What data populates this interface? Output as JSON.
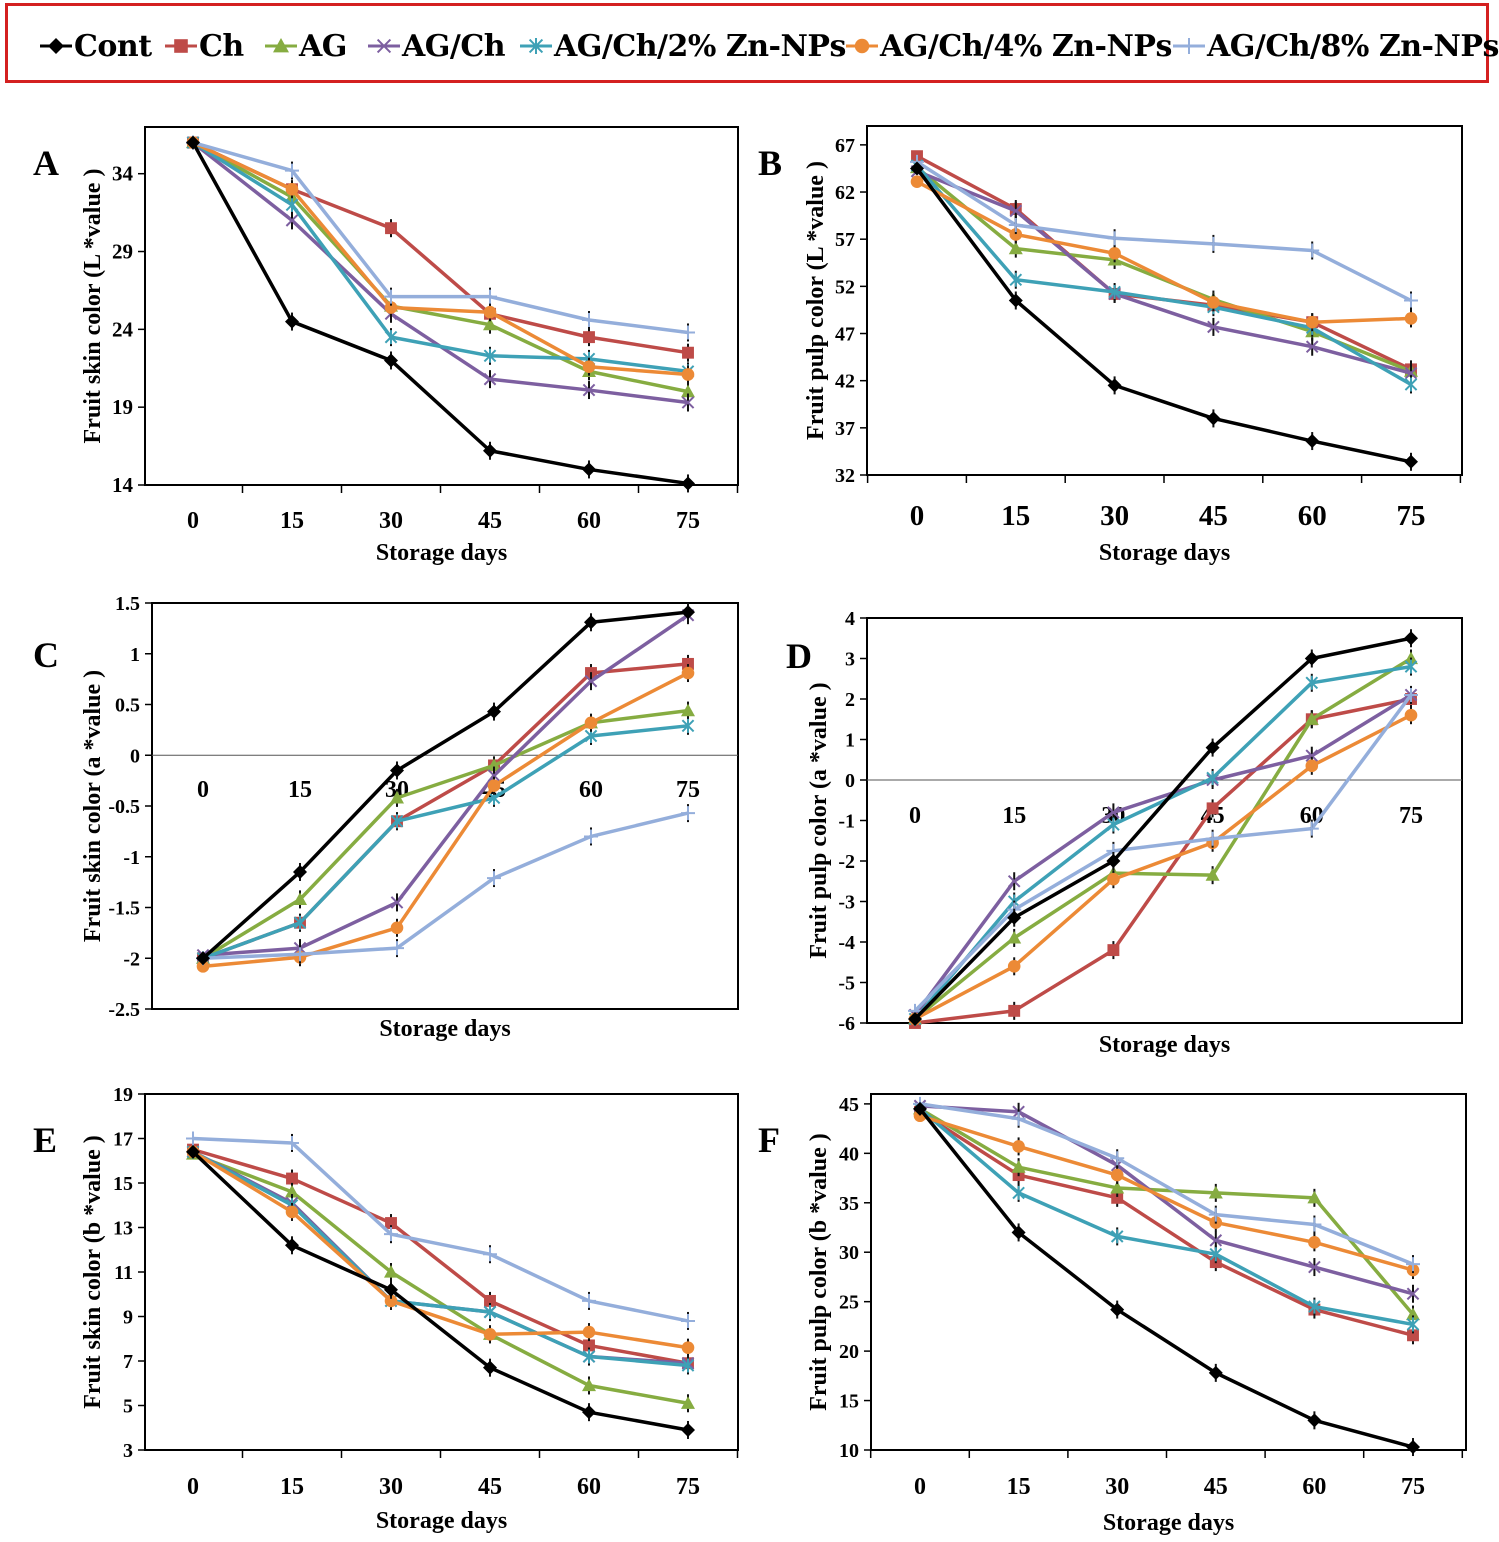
{
  "legend": [
    {
      "name": "Cont",
      "color": "#000000",
      "marker": "diamond"
    },
    {
      "name": "Ch",
      "color": "#be4b48",
      "marker": "square"
    },
    {
      "name": "AG",
      "color": "#86ac41",
      "marker": "triangle"
    },
    {
      "name": "AG/Ch",
      "color": "#7d5fa0",
      "marker": "x"
    },
    {
      "name": "AG/Ch/2% Zn-NPs",
      "color": "#3ea1b6",
      "marker": "star"
    },
    {
      "name": "AG/Ch/4% Zn-NPs",
      "color": "#ec8a36",
      "marker": "circle"
    },
    {
      "name": "AG/Ch/8% Zn-NPs",
      "color": "#94aedb",
      "marker": "plus"
    }
  ],
  "chart_data": [
    {
      "panel": "A",
      "type": "line",
      "ylabel": "Fruit skin  color (L *value )",
      "xlabel": "Storage days",
      "x": [
        0,
        15,
        30,
        45,
        60,
        75
      ],
      "xticks": [
        "0",
        "15",
        "30",
        "45",
        "60",
        "75"
      ],
      "ylim": [
        14,
        37
      ],
      "yticks": [
        "14",
        "19",
        "24",
        "29",
        "34"
      ],
      "series": [
        {
          "name": "Cont",
          "values": [
            36,
            24.5,
            22,
            16.2,
            15,
            14.1
          ]
        },
        {
          "name": "Ch",
          "values": [
            36,
            33,
            30.5,
            25,
            23.5,
            22.5
          ]
        },
        {
          "name": "AG",
          "values": [
            36,
            32.5,
            25.5,
            24.3,
            21.3,
            20
          ]
        },
        {
          "name": "AG/Ch",
          "values": [
            36,
            31,
            25,
            20.8,
            20.1,
            19.3
          ]
        },
        {
          "name": "AG/Ch/2% Zn-NPs",
          "values": [
            36,
            32,
            23.5,
            22.3,
            22.1,
            21.3
          ]
        },
        {
          "name": "AG/Ch/4% Zn-NPs",
          "values": [
            36,
            33,
            25.4,
            25.1,
            21.6,
            21.1
          ]
        },
        {
          "name": "AG/Ch/8% Zn-NPs",
          "values": [
            36,
            34.2,
            26.1,
            26.1,
            24.6,
            23.8
          ]
        }
      ]
    },
    {
      "panel": "B",
      "type": "line",
      "ylabel": "Fruit pulp color (L *value )",
      "xlabel": "Storage days",
      "x": [
        0,
        15,
        30,
        45,
        60,
        75
      ],
      "xticks": [
        "0",
        "15",
        "30",
        "45",
        "60",
        "75"
      ],
      "ylim": [
        32,
        69
      ],
      "yticks": [
        "32",
        "37",
        "42",
        "47",
        "52",
        "57",
        "62",
        "67"
      ],
      "series": [
        {
          "name": "Cont",
          "values": [
            64.5,
            50.5,
            41.5,
            38,
            35.6,
            33.4
          ]
        },
        {
          "name": "Ch",
          "values": [
            65.8,
            60.2,
            51.2,
            50,
            48.2,
            43.2
          ]
        },
        {
          "name": "AG",
          "values": [
            64.6,
            56,
            54.8,
            50.6,
            47.2,
            43
          ]
        },
        {
          "name": "AG/Ch",
          "values": [
            64.2,
            60,
            51.2,
            47.7,
            45.6,
            42.8
          ]
        },
        {
          "name": "AG/Ch/2% Zn-NPs",
          "values": [
            64.8,
            52.7,
            51.4,
            49.8,
            47.6,
            41.6
          ]
        },
        {
          "name": "AG/Ch/4% Zn-NPs",
          "values": [
            63.1,
            57.5,
            55.5,
            50.3,
            48.2,
            48.6
          ]
        },
        {
          "name": "AG/Ch/8% Zn-NPs",
          "values": [
            65.2,
            58.5,
            57.1,
            56.5,
            55.8,
            50.5
          ]
        }
      ]
    },
    {
      "panel": "C",
      "type": "line",
      "ylabel": "Fruit skin  color (a *value )",
      "xlabel": "Storage days",
      "x": [
        0,
        15,
        30,
        45,
        60,
        75
      ],
      "xticks": [
        "0",
        "15",
        "30",
        "45",
        "60",
        "75"
      ],
      "ylim": [
        -2.5,
        1.5
      ],
      "yticks": [
        "-2.5",
        "-2",
        "-1.5",
        "-1",
        "-0.5",
        "0",
        "0.5",
        "1",
        "1.5"
      ],
      "series": [
        {
          "name": "Cont",
          "values": [
            -2,
            -1.15,
            -0.15,
            0.43,
            1.31,
            1.41
          ]
        },
        {
          "name": "Ch",
          "values": [
            -2,
            -1.65,
            -0.65,
            -0.1,
            0.81,
            0.9
          ]
        },
        {
          "name": "AG",
          "values": [
            -2,
            -1.42,
            -0.42,
            -0.1,
            0.32,
            0.44
          ]
        },
        {
          "name": "AG/Ch",
          "values": [
            -1.97,
            -1.9,
            -1.45,
            -0.2,
            0.73,
            1.38
          ]
        },
        {
          "name": "AG/Ch/2% Zn-NPs",
          "values": [
            -2,
            -1.65,
            -0.65,
            -0.42,
            0.19,
            0.29
          ]
        },
        {
          "name": "AG/Ch/4% Zn-NPs",
          "values": [
            -2.08,
            -1.99,
            -1.7,
            -0.3,
            0.32,
            0.81
          ]
        },
        {
          "name": "AG/Ch/8% Zn-NPs",
          "values": [
            -2,
            -1.96,
            -1.9,
            -1.21,
            -0.8,
            -0.57
          ]
        }
      ]
    },
    {
      "panel": "D",
      "type": "line",
      "ylabel": "Fruit pulp color (a *value )",
      "xlabel": "Storage days",
      "x": [
        0,
        15,
        30,
        45,
        60,
        75
      ],
      "xticks": [
        "0",
        "15",
        "30",
        "45",
        "60",
        "75"
      ],
      "ylim": [
        -6,
        4
      ],
      "yticks": [
        "-6",
        "-5",
        "-4",
        "-3",
        "-2",
        "-1",
        "0",
        "1",
        "2",
        "3",
        "4"
      ],
      "series": [
        {
          "name": "Cont",
          "values": [
            -5.9,
            -3.4,
            -2,
            0.8,
            3,
            3.5
          ]
        },
        {
          "name": "Ch",
          "values": [
            -6,
            -5.7,
            -4.2,
            -0.7,
            1.5,
            2
          ]
        },
        {
          "name": "AG",
          "values": [
            -5.9,
            -3.9,
            -2.3,
            -2.35,
            1.5,
            3
          ]
        },
        {
          "name": "AG/Ch",
          "values": [
            -5.8,
            -2.5,
            -0.8,
            0,
            0.6,
            2.1
          ]
        },
        {
          "name": "AG/Ch/2% Zn-NPs",
          "values": [
            -5.9,
            -3,
            -1.1,
            0.05,
            2.4,
            2.8
          ]
        },
        {
          "name": "AG/Ch/4% Zn-NPs",
          "values": [
            -5.9,
            -4.6,
            -2.45,
            -1.55,
            0.35,
            1.6
          ]
        },
        {
          "name": "AG/Ch/8% Zn-NPs",
          "values": [
            -5.7,
            -3.2,
            -1.75,
            -1.45,
            -1.2,
            2.1
          ]
        }
      ]
    },
    {
      "panel": "E",
      "type": "line",
      "ylabel": "Fruit skin  color (b *value )",
      "xlabel": "Storage days",
      "x": [
        0,
        15,
        30,
        45,
        60,
        75
      ],
      "xticks": [
        "0",
        "15",
        "30",
        "45",
        "60",
        "75"
      ],
      "ylim": [
        3,
        19
      ],
      "yticks": [
        "3",
        "5",
        "7",
        "9",
        "11",
        "13",
        "15",
        "17",
        "19"
      ],
      "series": [
        {
          "name": "Cont",
          "values": [
            16.4,
            12.2,
            10.2,
            6.7,
            4.7,
            3.9
          ]
        },
        {
          "name": "Ch",
          "values": [
            16.5,
            15.2,
            13.2,
            9.7,
            7.7,
            6.9
          ]
        },
        {
          "name": "AG",
          "values": [
            16.3,
            14.6,
            11,
            8.2,
            5.9,
            5.1
          ]
        },
        {
          "name": "AG/Ch",
          "values": [
            16.4,
            14.1,
            9.7,
            9.2,
            7.2,
            6.9
          ]
        },
        {
          "name": "AG/Ch/2% Zn-NPs",
          "values": [
            16.4,
            14,
            9.7,
            9.2,
            7.2,
            6.8
          ]
        },
        {
          "name": "AG/Ch/4% Zn-NPs",
          "values": [
            16.4,
            13.7,
            9.7,
            8.2,
            8.3,
            7.6
          ]
        },
        {
          "name": "AG/Ch/8% Zn-NPs",
          "values": [
            17,
            16.8,
            12.7,
            11.8,
            9.7,
            8.8
          ]
        }
      ]
    },
    {
      "panel": "F",
      "type": "line",
      "ylabel": "Fruit pulp color (b *value )",
      "xlabel": "Storage days",
      "x": [
        0,
        15,
        30,
        45,
        60,
        75
      ],
      "xticks": [
        "0",
        "15",
        "30",
        "45",
        "60",
        "75"
      ],
      "ylim": [
        10,
        46
      ],
      "yticks": [
        "10",
        "15",
        "20",
        "25",
        "30",
        "35",
        "40",
        "45"
      ],
      "series": [
        {
          "name": "Cont",
          "values": [
            44.5,
            32,
            24.2,
            17.8,
            13,
            10.3
          ]
        },
        {
          "name": "Ch",
          "values": [
            44.2,
            37.8,
            35.5,
            29,
            24.2,
            21.6
          ]
        },
        {
          "name": "AG",
          "values": [
            44.5,
            38.6,
            36.5,
            36,
            35.5,
            23.7
          ]
        },
        {
          "name": "AG/Ch",
          "values": [
            44.8,
            44.2,
            38.8,
            31.2,
            28.5,
            25.8
          ]
        },
        {
          "name": "AG/Ch/2% Zn-NPs",
          "values": [
            44.5,
            36,
            31.6,
            29.8,
            24.5,
            22.7
          ]
        },
        {
          "name": "AG/Ch/4% Zn-NPs",
          "values": [
            43.8,
            40.7,
            37.8,
            33,
            31,
            28.2
          ]
        },
        {
          "name": "AG/Ch/8% Zn-NPs",
          "values": [
            45,
            43.5,
            39.5,
            33.8,
            32.8,
            28.8
          ]
        }
      ]
    }
  ]
}
